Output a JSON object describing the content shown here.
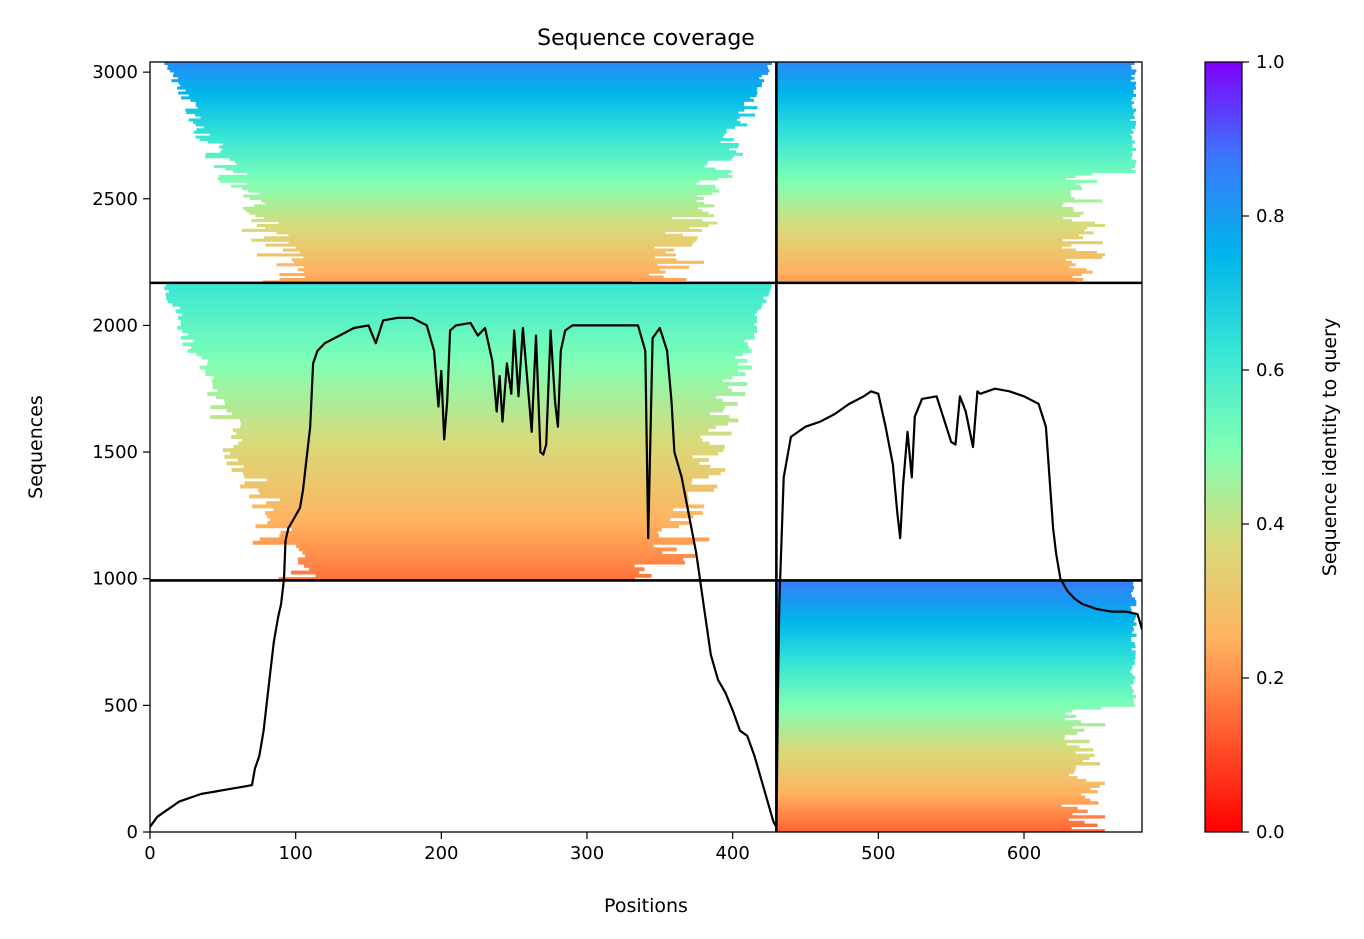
{
  "chart_data": {
    "type": "heatmap",
    "title": "Sequence coverage",
    "xlabel": "Positions",
    "ylabel": "Sequences",
    "xlim": [
      0,
      681
    ],
    "ylim": [
      0,
      3040
    ],
    "x_ticks": [
      0,
      100,
      200,
      300,
      400,
      500,
      600
    ],
    "y_ticks": [
      0,
      500,
      1000,
      1500,
      2000,
      2500,
      3000
    ],
    "colorbar": {
      "label": "Sequence identity to query",
      "range": [
        0,
        1
      ],
      "ticks": [
        "0.0",
        "0.2",
        "0.4",
        "0.6",
        "0.8",
        "1.0"
      ],
      "colormap": "rainbow_r"
    },
    "chain_boundaries": {
      "x": [
        430
      ],
      "y": [
        993,
        2168
      ]
    },
    "blocks": [
      {
        "name": "chain1-chain1",
        "x_range": [
          0,
          430
        ],
        "y_range": [
          2168,
          3040
        ],
        "identity_bottom": 0.22,
        "identity_top": 0.83
      },
      {
        "name": "chain2-chain1",
        "x_range": [
          430,
          681
        ],
        "y_range": [
          2168,
          3040
        ],
        "identity_bottom": 0.22,
        "identity_top": 0.83
      },
      {
        "name": "chain1-chain2",
        "x_range": [
          0,
          430
        ],
        "y_range": [
          993,
          2168
        ],
        "identity_bottom": 0.16,
        "identity_top": 0.62
      },
      {
        "name": "chain2-chain3",
        "x_range": [
          430,
          681
        ],
        "y_range": [
          0,
          993
        ],
        "identity_bottom": 0.14,
        "identity_top": 0.86
      }
    ],
    "coverage": {
      "x": [
        0,
        5,
        10,
        15,
        20,
        25,
        30,
        35,
        40,
        45,
        50,
        55,
        60,
        65,
        70,
        72,
        75,
        78,
        80,
        82,
        85,
        88,
        90,
        92,
        93,
        95,
        98,
        100,
        103,
        105,
        108,
        110,
        112,
        115,
        120,
        130,
        140,
        150,
        155,
        160,
        170,
        180,
        190,
        195,
        198,
        200,
        202,
        204,
        206,
        210,
        220,
        225,
        230,
        235,
        238,
        240,
        242,
        245,
        248,
        250,
        253,
        256,
        260,
        262,
        265,
        268,
        270,
        272,
        275,
        278,
        280,
        282,
        285,
        290,
        300,
        320,
        335,
        340,
        342,
        345,
        350,
        355,
        358,
        360,
        365,
        370,
        375,
        380,
        385,
        390,
        395,
        400,
        405,
        410,
        415,
        420,
        425,
        428,
        430,
        431,
        432,
        435,
        440,
        450,
        460,
        470,
        480,
        490,
        495,
        500,
        505,
        510,
        513,
        515,
        517,
        520,
        523,
        525,
        530,
        540,
        550,
        553,
        556,
        560,
        565,
        568,
        570,
        580,
        590,
        600,
        610,
        615,
        620,
        622,
        625,
        630,
        635,
        640,
        650,
        660,
        670,
        678,
        681
      ],
      "y": [
        20,
        60,
        80,
        100,
        120,
        130,
        140,
        150,
        155,
        160,
        165,
        170,
        175,
        180,
        185,
        250,
        300,
        400,
        500,
        600,
        750,
        850,
        900,
        1000,
        1150,
        1200,
        1230,
        1250,
        1280,
        1350,
        1500,
        1600,
        1850,
        1900,
        1930,
        1960,
        1990,
        2000,
        1930,
        2020,
        2030,
        2030,
        2000,
        1900,
        1680,
        1820,
        1550,
        1700,
        1980,
        2000,
        2010,
        1960,
        1990,
        1860,
        1660,
        1800,
        1620,
        1850,
        1730,
        1980,
        1720,
        1990,
        1720,
        1580,
        1960,
        1500,
        1490,
        1530,
        1980,
        1700,
        1600,
        1900,
        1980,
        2000,
        2000,
        2000,
        2000,
        1900,
        1160,
        1950,
        1990,
        1900,
        1700,
        1500,
        1400,
        1250,
        1100,
        900,
        700,
        600,
        550,
        480,
        400,
        380,
        300,
        200,
        100,
        40,
        20,
        500,
        900,
        1400,
        1560,
        1600,
        1620,
        1650,
        1690,
        1720,
        1740,
        1730,
        1600,
        1450,
        1260,
        1160,
        1370,
        1580,
        1400,
        1640,
        1710,
        1720,
        1540,
        1530,
        1720,
        1660,
        1520,
        1740,
        1730,
        1750,
        1740,
        1720,
        1690,
        1600,
        1200,
        1100,
        1000,
        950,
        920,
        900,
        880,
        870,
        870,
        860,
        800
      ]
    }
  }
}
